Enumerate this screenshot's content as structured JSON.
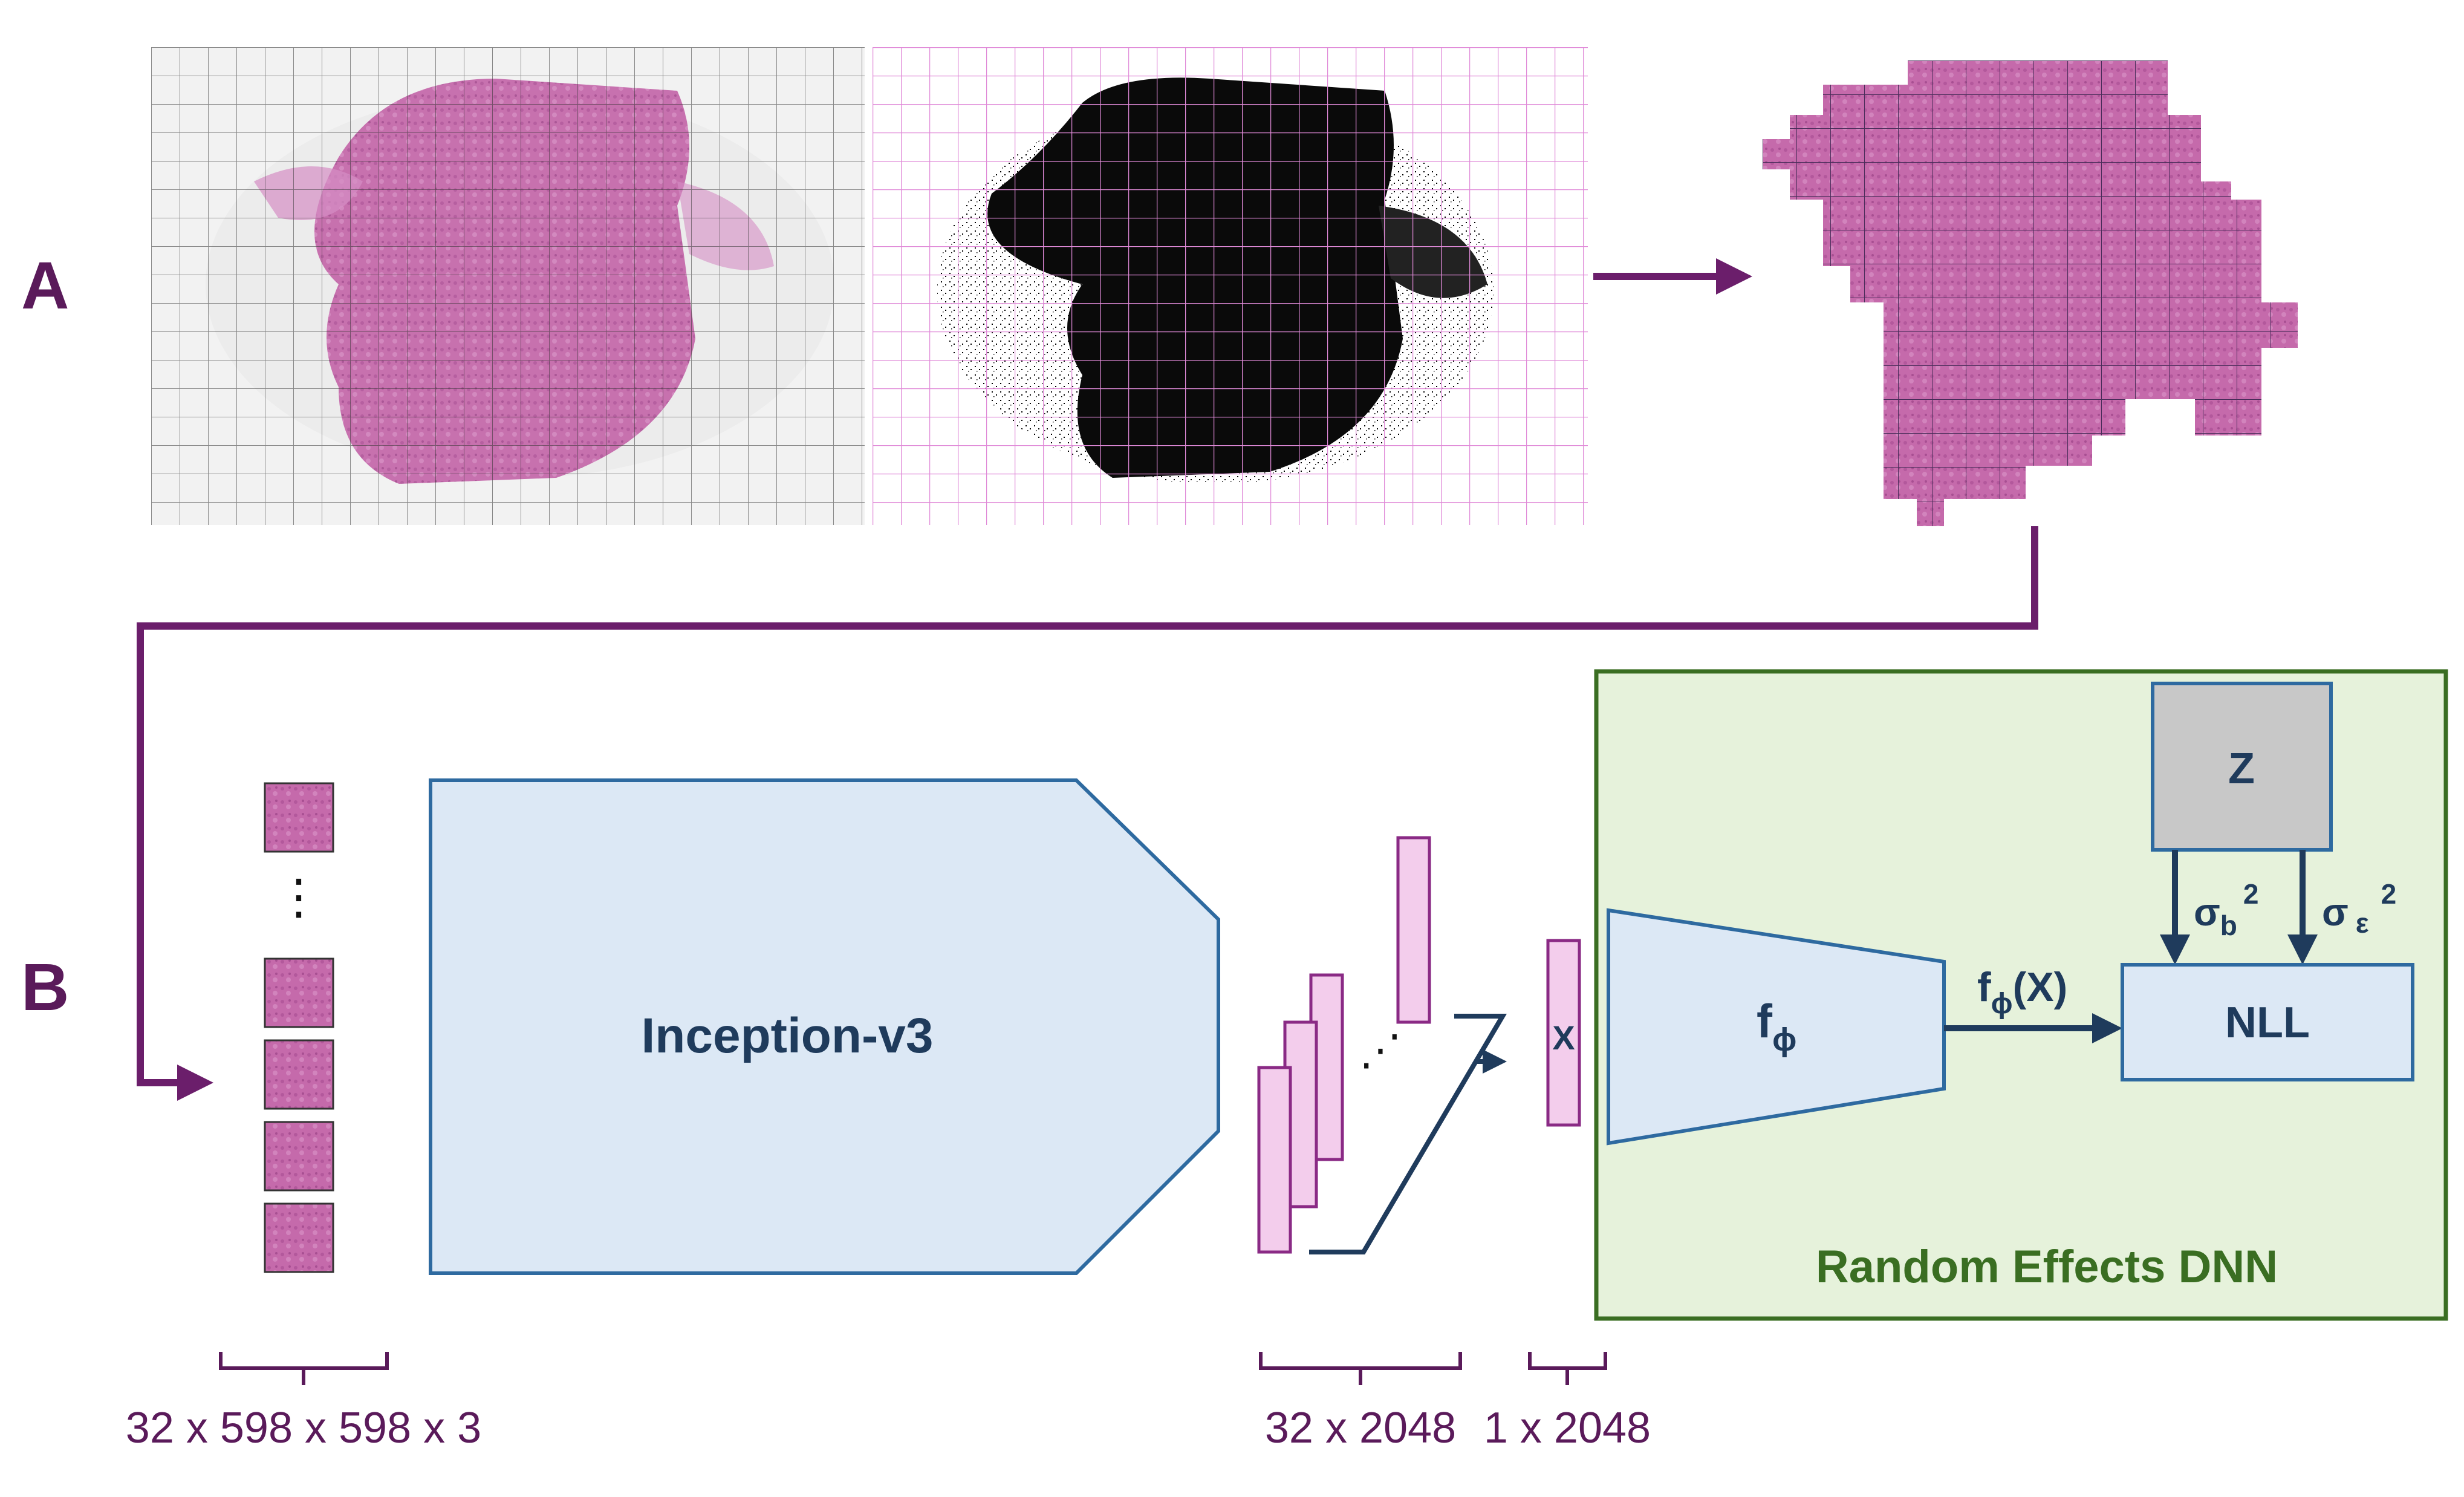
{
  "panels": {
    "a_label": "A",
    "b_label": "B"
  },
  "blocks": {
    "backbone": "Inception-v3",
    "feature_vector": "X",
    "network": "f",
    "network_sub": "ϕ",
    "output_prefix": "f",
    "output_sub": "ϕ",
    "output_suffix": "(X)",
    "z_box": "Z",
    "loss": "NLL",
    "sigma_b": "σ",
    "sigma_b_sub": "b",
    "sigma_b_sup": "2",
    "sigma_e": "σ",
    "sigma_e_sub": "ε",
    "sigma_e_sup": "2",
    "re_title": "Random Effects DNN"
  },
  "dimensions": {
    "tiles": "32 x 598 x 598 x 3",
    "features": "32 x 2048",
    "pooled": "1 x 2048"
  },
  "symbols": {
    "vdots": "⋮",
    "ddots": "⋰"
  },
  "colors": {
    "accent_purple": "#6b1e6b",
    "dark_purple": "#5a1a5a",
    "navy": "#1f3b5c",
    "blue_fill": "#dce8f5",
    "blue_stroke": "#2e6aa0",
    "pink_fill": "#f3cdec",
    "pink_stroke": "#8a2a85",
    "green_fill": "#e6f2db",
    "green_stroke": "#3a6e22",
    "green_text": "#3a6e22",
    "gray_fill": "#c8c8c8",
    "tissue_pink": "#c266a8"
  }
}
